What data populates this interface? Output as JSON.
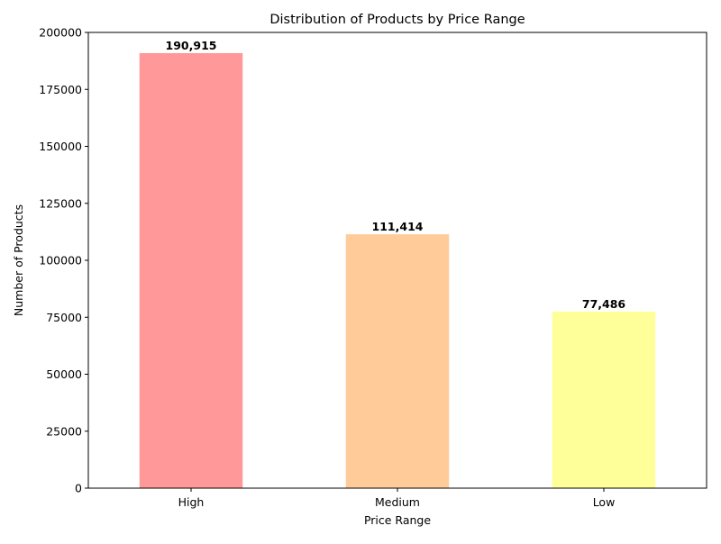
{
  "chart_data": {
    "type": "bar",
    "title": "Distribution of Products by Price Range",
    "xlabel": "Price Range",
    "ylabel": "Number of Products",
    "categories": [
      "High",
      "Medium",
      "Low"
    ],
    "values": [
      190915,
      111414,
      77486
    ],
    "value_labels": [
      "190,915",
      "111,414",
      "77,486"
    ],
    "colors": [
      "#ff9999",
      "#ffcc99",
      "#ffff99"
    ],
    "ylim": [
      0,
      200000
    ],
    "yticks": [
      0,
      25000,
      50000,
      75000,
      100000,
      125000,
      150000,
      175000,
      200000
    ],
    "ytick_labels": [
      "0",
      "25000",
      "50000",
      "75000",
      "100000",
      "125000",
      "150000",
      "175000",
      "200000"
    ],
    "grid": false,
    "legend": "none"
  }
}
